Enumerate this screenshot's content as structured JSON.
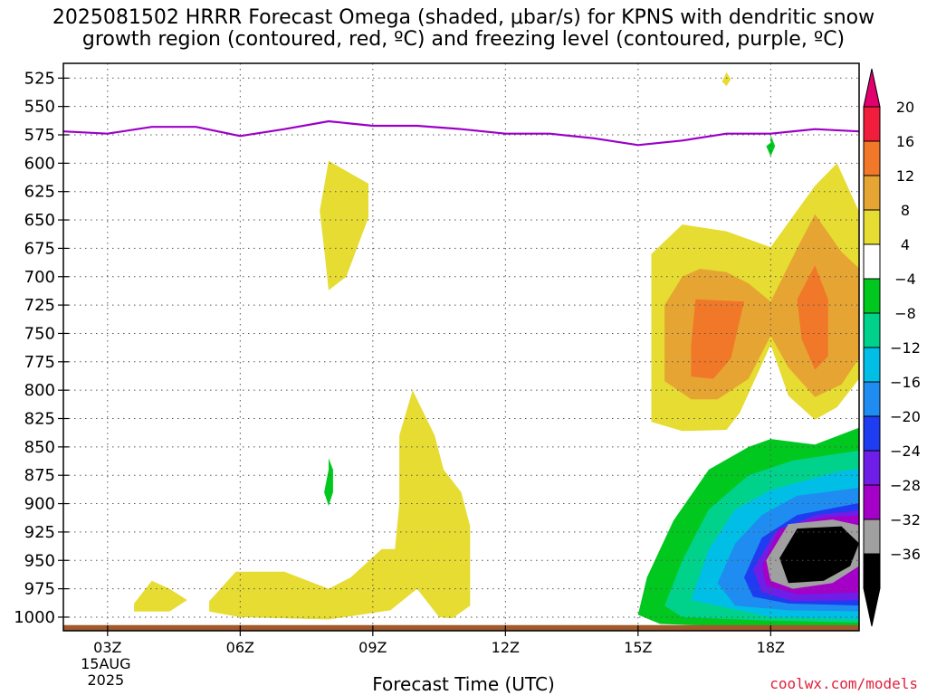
{
  "title_line1": "2025081502 HRRR Forecast Omega (shaded, μbar/s) for KPNS with dendritic snow",
  "title_line2": "growth region (contoured, red, ºC) and freezing level (contoured, purple, ºC)",
  "xlabel": "Forecast Time (UTC)",
  "credit": "coolwx.com/models",
  "chart_data": {
    "type": "heatmap",
    "x_ticks": [
      {
        "hour": 3,
        "label": "03Z",
        "label2": "15AUG",
        "label3": "2025"
      },
      {
        "hour": 6,
        "label": "06Z"
      },
      {
        "hour": 9,
        "label": "09Z"
      },
      {
        "hour": 12,
        "label": "12Z"
      },
      {
        "hour": 15,
        "label": "15Z"
      },
      {
        "hour": 18,
        "label": "18Z"
      }
    ],
    "xlim": [
      2,
      20
    ],
    "y_levels_hPa": [
      525,
      550,
      575,
      600,
      625,
      650,
      675,
      700,
      725,
      750,
      775,
      800,
      825,
      850,
      875,
      900,
      925,
      950,
      975,
      1000
    ],
    "ylim": [
      512,
      1012
    ],
    "grid": true,
    "colorbar": {
      "labels": [
        "20",
        "16",
        "12",
        "8",
        "4",
        "−4",
        "−8",
        "−12",
        "−16",
        "−20",
        "−24",
        "−28",
        "−32",
        "−36"
      ],
      "colors": [
        "#f01e3c",
        "#f07828",
        "#e6a532",
        "#e6dc32",
        "#ffffff",
        "#00c81e",
        "#00d28c",
        "#00bee6",
        "#1e8cf0",
        "#1e3cf0",
        "#6e1ee6",
        "#a500c8",
        "#a0a0a0",
        "#000000"
      ],
      "top_arrow_color": "#e0006e",
      "bottom_arrow_color": "#000000"
    },
    "freezing_level": {
      "color": "#9b00c8",
      "x": [
        2,
        3,
        4,
        5,
        6,
        7,
        8,
        9,
        10,
        11,
        12,
        13,
        14,
        15,
        16,
        17,
        18,
        19,
        20
      ],
      "y": [
        572,
        574,
        568,
        568,
        576,
        570,
        563,
        567,
        567,
        570,
        574,
        574,
        578,
        584,
        580,
        574,
        574,
        570,
        572
      ]
    },
    "omega_regions": [
      {
        "value": "4-8",
        "color": "#e6dc32",
        "points": [
          [
            8,
            598
          ],
          [
            8.9,
            618
          ],
          [
            8.9,
            648
          ],
          [
            8.4,
            700
          ],
          [
            8,
            712
          ],
          [
            7.9,
            676
          ],
          [
            7.8,
            642
          ]
        ]
      },
      {
        "value": "4-8",
        "color": "#e6dc32",
        "points": [
          [
            17,
            520
          ],
          [
            16.9,
            528
          ],
          [
            17,
            532
          ],
          [
            17.1,
            526
          ]
        ]
      },
      {
        "value": "4-8",
        "color": "#e6dc32",
        "points": [
          [
            3.6,
            988
          ],
          [
            4,
            968
          ],
          [
            4.4,
            975
          ],
          [
            4.8,
            985
          ],
          [
            4.4,
            995
          ],
          [
            3.6,
            995
          ]
        ]
      },
      {
        "value": "4-8",
        "color": "#e6dc32",
        "points": [
          [
            5.3,
            986
          ],
          [
            5.9,
            960
          ],
          [
            7,
            960
          ],
          [
            8,
            975
          ],
          [
            8.5,
            965
          ],
          [
            9.2,
            940
          ],
          [
            9.5,
            940
          ],
          [
            9.6,
            900
          ],
          [
            9.6,
            840
          ],
          [
            9.9,
            800
          ],
          [
            10.4,
            840
          ],
          [
            10.6,
            870
          ],
          [
            11,
            890
          ],
          [
            11.2,
            920
          ],
          [
            11.2,
            990
          ],
          [
            10.8,
            1001
          ],
          [
            10.5,
            1000
          ],
          [
            10.2,
            985
          ],
          [
            10,
            975
          ],
          [
            9.4,
            994
          ],
          [
            8,
            1002
          ],
          [
            6,
            1000
          ],
          [
            5.3,
            995
          ]
        ]
      },
      {
        "value": "4-8",
        "color": "#e6dc32",
        "points": [
          [
            15.3,
            680
          ],
          [
            16,
            654
          ],
          [
            17,
            660
          ],
          [
            18,
            674
          ],
          [
            19,
            620
          ],
          [
            19.5,
            600
          ],
          [
            20.2,
            660
          ],
          [
            20.2,
            780
          ],
          [
            19.5,
            815
          ],
          [
            19,
            826
          ],
          [
            18.4,
            805
          ],
          [
            18,
            760
          ],
          [
            17.3,
            820
          ],
          [
            17,
            835
          ],
          [
            16,
            836
          ],
          [
            15.3,
            828
          ],
          [
            15.3,
            780
          ]
        ]
      },
      {
        "value": "8-12",
        "color": "#e6a532",
        "points": [
          [
            15.6,
            725
          ],
          [
            16,
            700
          ],
          [
            16.4,
            693
          ],
          [
            17,
            696
          ],
          [
            17.5,
            706
          ],
          [
            18,
            722
          ],
          [
            18.6,
            675
          ],
          [
            19,
            645
          ],
          [
            19.6,
            678
          ],
          [
            20.2,
            700
          ],
          [
            20.2,
            760
          ],
          [
            19.6,
            795
          ],
          [
            19,
            806
          ],
          [
            18.4,
            780
          ],
          [
            18,
            752
          ],
          [
            17.5,
            790
          ],
          [
            16.8,
            808
          ],
          [
            16.2,
            808
          ],
          [
            15.6,
            792
          ]
        ]
      },
      {
        "value": "12-16",
        "color": "#f07828",
        "points": [
          [
            16.3,
            720
          ],
          [
            17.4,
            722
          ],
          [
            17.1,
            772
          ],
          [
            16.7,
            790
          ],
          [
            16.2,
            788
          ],
          [
            16.2,
            760
          ]
        ]
      },
      {
        "value": "12-16",
        "color": "#f07828",
        "points": [
          [
            19,
            690
          ],
          [
            19.3,
            720
          ],
          [
            19.3,
            770
          ],
          [
            19,
            782
          ],
          [
            18.7,
            755
          ],
          [
            18.6,
            720
          ]
        ]
      },
      {
        "value": "-4 to -8",
        "color": "#00c81e",
        "points": [
          [
            8,
            870
          ],
          [
            8,
            860
          ],
          [
            8.1,
            870
          ],
          [
            8.1,
            890
          ],
          [
            8,
            902
          ],
          [
            7.9,
            890
          ]
        ]
      },
      {
        "value": "-4 to -8",
        "color": "#00c81e",
        "points": [
          [
            18,
            582
          ],
          [
            18,
            575
          ],
          [
            18.1,
            585
          ],
          [
            18,
            594
          ],
          [
            17.9,
            585
          ]
        ]
      },
      {
        "value": "-4 to -8",
        "color": "#00c81e",
        "points": [
          [
            15,
            998
          ],
          [
            15.2,
            965
          ],
          [
            15.8,
            915
          ],
          [
            16.6,
            870
          ],
          [
            17.5,
            850
          ],
          [
            18,
            843
          ],
          [
            19,
            848
          ],
          [
            20.2,
            830
          ],
          [
            20.2,
            1008
          ],
          [
            19,
            1010
          ],
          [
            17,
            1008
          ],
          [
            15.5,
            1006
          ]
        ]
      },
      {
        "value": "-8 to -12",
        "color": "#00d28c",
        "points": [
          [
            15.6,
            990
          ],
          [
            16,
            950
          ],
          [
            16.6,
            905
          ],
          [
            17.5,
            875
          ],
          [
            18.5,
            862
          ],
          [
            20.2,
            852
          ],
          [
            20.2,
            1005
          ],
          [
            18,
            1003
          ],
          [
            16,
            1000
          ]
        ]
      },
      {
        "value": "-12 to -16",
        "color": "#00bee6",
        "points": [
          [
            16.2,
            985
          ],
          [
            16.6,
            940
          ],
          [
            17.2,
            905
          ],
          [
            18,
            888
          ],
          [
            19.5,
            872
          ],
          [
            20.2,
            868
          ],
          [
            20.2,
            1002
          ],
          [
            18,
            1000
          ]
        ]
      },
      {
        "value": "-16 to -20",
        "color": "#1e8cf0",
        "points": [
          [
            16.8,
            970
          ],
          [
            17.2,
            935
          ],
          [
            17.8,
            910
          ],
          [
            18.6,
            893
          ],
          [
            20.2,
            885
          ],
          [
            20.2,
            995
          ],
          [
            18.4,
            994
          ],
          [
            17.2,
            990
          ]
        ]
      },
      {
        "value": "-20 to -24",
        "color": "#1e3cf0",
        "points": [
          [
            17.4,
            965
          ],
          [
            17.8,
            930
          ],
          [
            18.6,
            910
          ],
          [
            20.2,
            898
          ],
          [
            20.2,
            990
          ],
          [
            18.4,
            988
          ],
          [
            17.6,
            982
          ]
        ]
      },
      {
        "value": "-24 to -28",
        "color": "#6e1ee6",
        "points": [
          [
            17.6,
            958
          ],
          [
            18.1,
            925
          ],
          [
            19,
            910
          ],
          [
            20.2,
            905
          ],
          [
            20.2,
            985
          ],
          [
            18.5,
            986
          ],
          [
            17.8,
            978
          ]
        ]
      },
      {
        "value": "-28 to -32",
        "color": "#a500c8",
        "points": [
          [
            17.8,
            955
          ],
          [
            18.2,
            922
          ],
          [
            19.2,
            912
          ],
          [
            20.2,
            910
          ],
          [
            20.2,
            978
          ],
          [
            18.6,
            980
          ],
          [
            17.9,
            972
          ]
        ]
      },
      {
        "value": "-32 to -36",
        "color": "#a0a0a0",
        "points": [
          [
            17.9,
            950
          ],
          [
            18.4,
            918
          ],
          [
            19.4,
            914
          ],
          [
            20.1,
            920
          ],
          [
            20,
            955
          ],
          [
            19.4,
            970
          ],
          [
            18.5,
            975
          ],
          [
            18,
            968
          ]
        ]
      },
      {
        "value": "< -36",
        "color": "#000000",
        "points": [
          [
            18.2,
            948
          ],
          [
            18.6,
            922
          ],
          [
            19.6,
            920
          ],
          [
            20,
            935
          ],
          [
            19.8,
            955
          ],
          [
            19.2,
            968
          ],
          [
            18.4,
            970
          ]
        ]
      }
    ],
    "surface_color": "#a05a2c"
  }
}
